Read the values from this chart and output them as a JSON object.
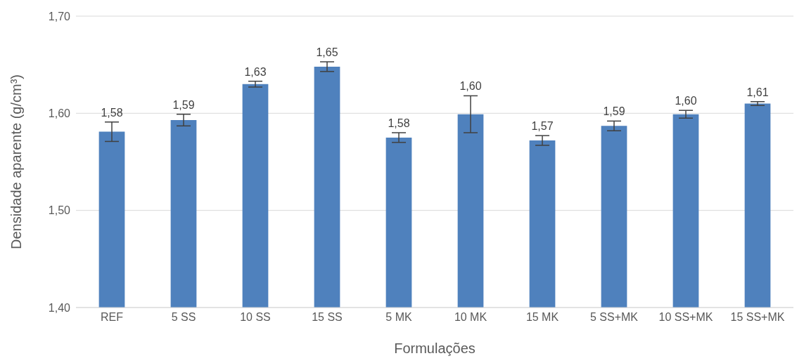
{
  "chart_data": {
    "type": "bar",
    "xlabel": "Formulações",
    "ylabel": "Densidade aparente (g/cm³)",
    "categories": [
      "REF",
      "5 SS",
      "10 SS",
      "15 SS",
      "5 MK",
      "10 MK",
      "15 MK",
      "5 SS+MK",
      "10 SS+MK",
      "15 SS+MK"
    ],
    "values": [
      1.581,
      1.593,
      1.63,
      1.648,
      1.575,
      1.599,
      1.572,
      1.587,
      1.599,
      1.61
    ],
    "errors": [
      0.01,
      0.006,
      0.003,
      0.005,
      0.005,
      0.019,
      0.005,
      0.005,
      0.004,
      0.002
    ],
    "value_labels": [
      "1,58",
      "1,59",
      "1,63",
      "1,65",
      "1,58",
      "1,60",
      "1,57",
      "1,59",
      "1,60",
      "1,61"
    ],
    "color": "#4f81bd",
    "ylim": [
      1.4,
      1.7
    ],
    "yticks": [
      {
        "value": 1.4,
        "label": "1,40"
      },
      {
        "value": 1.5,
        "label": "1,50"
      },
      {
        "value": 1.6,
        "label": "1,60"
      },
      {
        "value": 1.7,
        "label": "1,70"
      }
    ],
    "grid": "y",
    "legend": false
  }
}
